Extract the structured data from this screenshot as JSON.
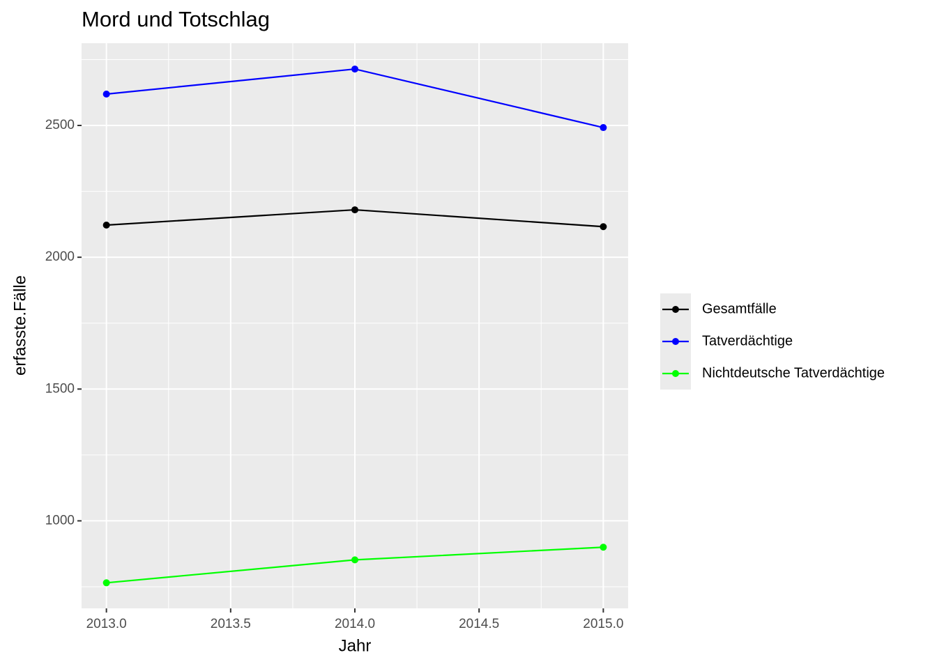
{
  "chart_data": {
    "type": "line",
    "title": "Mord und Totschlag",
    "x_label": "Jahr",
    "y_label": "erfasste.Fälle",
    "x": [
      2013,
      2014,
      2015
    ],
    "series": [
      {
        "name": "Gesamtfälle",
        "color": "#000000",
        "values": [
          2122,
          2180,
          2116
        ]
      },
      {
        "name": "Tatverdächtige",
        "color": "#0000ff",
        "values": [
          2619,
          2714,
          2492
        ]
      },
      {
        "name": "Nichtdeutsche Tatverdächtige",
        "color": "#00ff00",
        "values": [
          765,
          852,
          900
        ]
      }
    ],
    "xlim": [
      2012.9,
      2015.1
    ],
    "xticks": [
      {
        "value": 2013,
        "label": "2013.0"
      },
      {
        "value": 2013.5,
        "label": "2013.5"
      },
      {
        "value": 2014,
        "label": "2014.0"
      },
      {
        "value": 2014.5,
        "label": "2014.5"
      },
      {
        "value": 2015,
        "label": "2015.0"
      }
    ],
    "ylim": [
      668,
      2812
    ],
    "yticks": [
      1000,
      1500,
      2000,
      2500
    ],
    "grid": true,
    "legend": "right"
  }
}
